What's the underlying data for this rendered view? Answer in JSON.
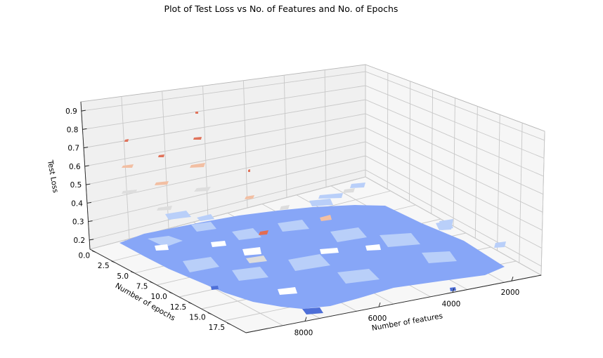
{
  "chart_data": {
    "type": "surface-contour-3d",
    "title": "Plot of Test Loss vs No. of Features and No. of Epochs",
    "xlabel": "Number of features",
    "ylabel": "Number of epochs",
    "zlabel": "Test Loss",
    "x_ticks": [
      "2000",
      "4000",
      "6000",
      "8000"
    ],
    "y_ticks": [
      "0.0",
      "2.5",
      "5.0",
      "7.5",
      "10.0",
      "12.5",
      "15.0",
      "17.5"
    ],
    "z_ticks": [
      "0.2",
      "0.3",
      "0.4",
      "0.5",
      "0.6",
      "0.7",
      "0.8",
      "0.9"
    ],
    "z_tick_values": [
      0.2,
      0.3,
      0.4,
      0.5,
      0.6,
      0.7,
      0.8,
      0.9
    ],
    "colormap": "coolwarm",
    "level_colors": {
      "lowest": "#4e6fd8",
      "low": "#87a6f7",
      "low_mid": "#b9cff9",
      "mid": "#dddddd",
      "high_mid": "#f2bfa3",
      "high": "#e0735b"
    },
    "grid": true,
    "observations": [
      {
        "level": "low",
        "approx_test_loss": 0.2,
        "note": "bulk of surface near floor"
      },
      {
        "level": "high",
        "approx_test_loss": 0.9
      },
      {
        "level": "high",
        "approx_test_loss": 0.8
      },
      {
        "level": "high",
        "approx_test_loss": 0.7
      },
      {
        "level": "high_mid",
        "approx_test_loss": 0.6
      },
      {
        "level": "high_mid",
        "approx_test_loss": 0.5
      },
      {
        "level": "mid",
        "approx_test_loss": 0.45
      },
      {
        "level": "mid",
        "approx_test_loss": 0.4
      },
      {
        "level": "low_mid",
        "approx_test_loss": 0.35
      },
      {
        "level": "lowest",
        "approx_test_loss": 0.15
      }
    ]
  }
}
